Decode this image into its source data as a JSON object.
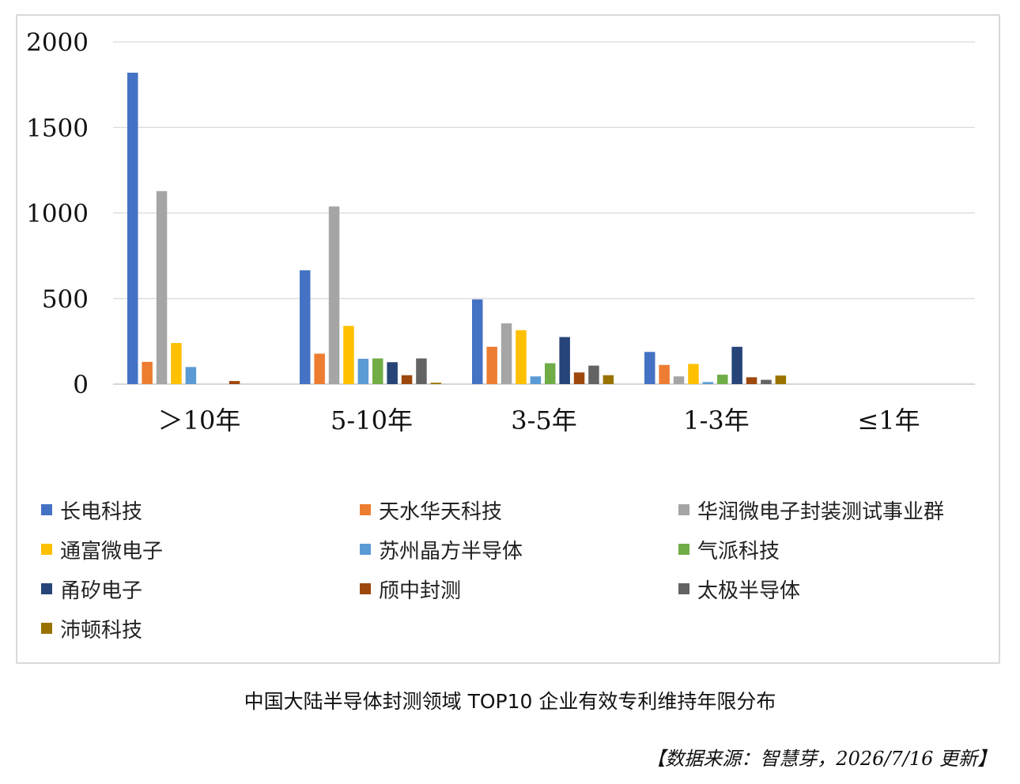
{
  "chart_data": {
    "type": "bar",
    "categories": [
      "＞10年",
      "5-10年",
      "3-5年",
      "1-3年",
      "≤1年"
    ],
    "ylim": [
      0,
      2000
    ],
    "yticks": [
      0,
      500,
      1000,
      1500,
      2000
    ],
    "grid": true,
    "legend_position": "bottom",
    "series": [
      {
        "name": "长电科技",
        "color": "#4472C4",
        "values": [
          1820,
          665,
          495,
          188,
          0
        ]
      },
      {
        "name": "天水华天科技",
        "color": "#ED7D31",
        "values": [
          130,
          178,
          218,
          112,
          0
        ]
      },
      {
        "name": "华润微电子封装测试事业群",
        "color": "#A5A5A5",
        "values": [
          1128,
          1038,
          355,
          45,
          0
        ]
      },
      {
        "name": "通富微电子",
        "color": "#FFC000",
        "values": [
          240,
          340,
          315,
          118,
          0
        ]
      },
      {
        "name": "苏州晶方半导体",
        "color": "#5B9BD5",
        "values": [
          100,
          148,
          45,
          12,
          0
        ]
      },
      {
        "name": "气派科技",
        "color": "#70AD47",
        "values": [
          0,
          150,
          122,
          55,
          0
        ]
      },
      {
        "name": "甬矽电子",
        "color": "#264478",
        "values": [
          0,
          128,
          275,
          218,
          0
        ]
      },
      {
        "name": "颀中封测",
        "color": "#9E480E",
        "values": [
          18,
          52,
          68,
          40,
          0
        ]
      },
      {
        "name": "太极半导体",
        "color": "#636363",
        "values": [
          0,
          150,
          108,
          25,
          0
        ]
      },
      {
        "name": "沛顿科技",
        "color": "#997300",
        "values": [
          0,
          8,
          52,
          50,
          0
        ]
      }
    ]
  },
  "caption": "中国大陆半导体封测领域 TOP10 企业有效专利维持年限分布",
  "source": "【数据来源：智慧芽，2026/7/16 更新】"
}
